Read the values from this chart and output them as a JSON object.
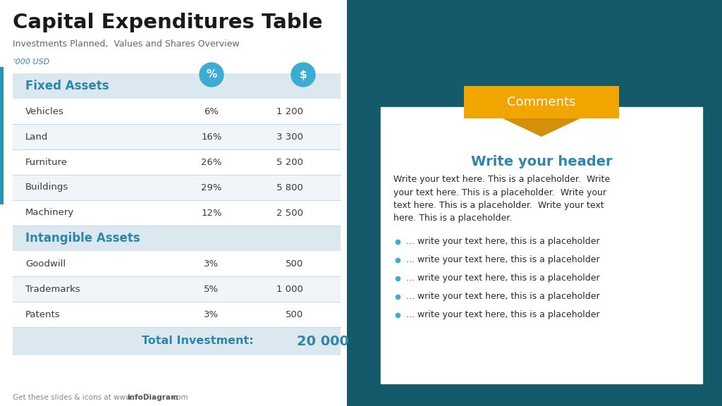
{
  "title": "Capital Expenditures Table",
  "subtitle": "Investments Planned,  Values and Shares Overview",
  "unit_label": "’000 USD",
  "left_bg": "#ffffff",
  "section_bg": "#dce8f0",
  "table_row_bg_white": "#ffffff",
  "table_row_bg_alt": "#f0f5f9",
  "divider_color": "#c5d8e8",
  "fixed_assets_label": "Fixed Assets",
  "intangible_assets_label": "Intangible Assets",
  "col_pct_label": "%",
  "col_usd_label": "$",
  "fixed_rows": [
    {
      "name": "Vehicles",
      "pct": "6%",
      "val": "1 200"
    },
    {
      "name": "Land",
      "pct": "16%",
      "val": "3 300"
    },
    {
      "name": "Furniture",
      "pct": "26%",
      "val": "5 200"
    },
    {
      "name": "Buildings",
      "pct": "29%",
      "val": "5 800"
    },
    {
      "name": "Machinery",
      "pct": "12%",
      "val": "2 500"
    }
  ],
  "intangible_rows": [
    {
      "name": "Goodwill",
      "pct": "3%",
      "val": "500"
    },
    {
      "name": "Trademarks",
      "pct": "5%",
      "val": "1 000"
    },
    {
      "name": "Patents",
      "pct": "3%",
      "val": "500"
    }
  ],
  "total_label": "Total Investment:",
  "total_value": "20 000",
  "comments_title": "Comments",
  "comments_header": "Write your header",
  "comments_body": "Write your text here. This is a placeholder.  Write\nyour text here. This is a placeholder.  Write your\ntext here. This is a placeholder.  Write your text\nhere. This is a placeholder.",
  "bullet_items": [
    "•  ... write your text here, this is a placeholder",
    "•  ... write your text here, this is a placeholder",
    "•  ... write your text here, this is a placeholder",
    "•  ... write your text here, this is a placeholder",
    "•  ... write your text here, this is a placeholder"
  ],
  "footer_normal": "Get these slides & icons at www.",
  "footer_bold": "infoDiagram",
  "footer_end": ".com",
  "blue_circle_color": "#3badd4",
  "orange_color": "#f0a500",
  "orange_dark": "#d4900a",
  "blue_text_color": "#2e86ab",
  "dark_text": "#3a3a3a",
  "teal_dark": "#0d4a5c",
  "teal_mid": "#1a6878",
  "accent_bar_color": "#2196b0"
}
